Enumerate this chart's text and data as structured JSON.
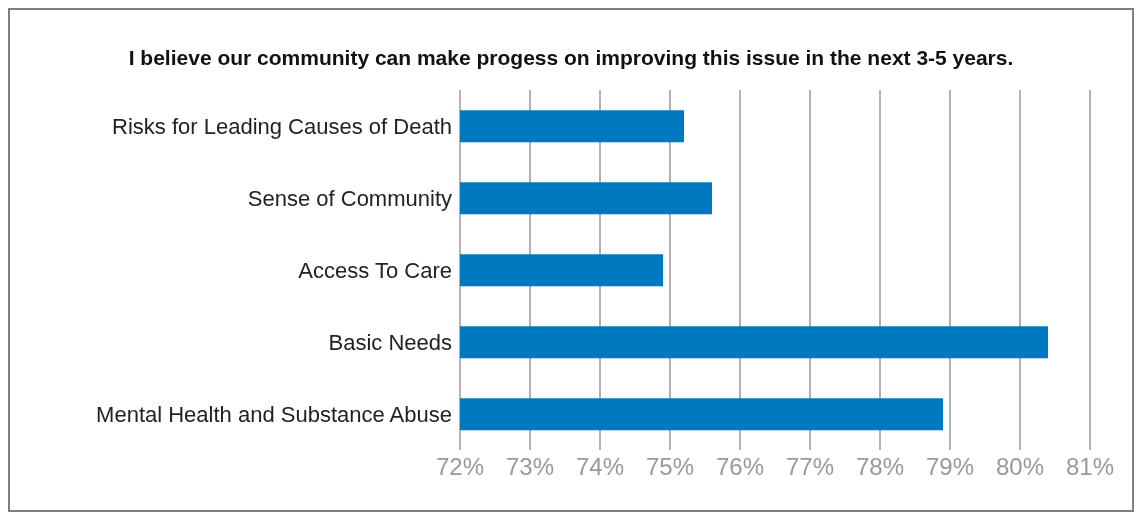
{
  "chart_data": {
    "type": "bar",
    "orientation": "horizontal",
    "title": "I believe our community can make progess on improving this issue in the next 3-5 years.",
    "categories": [
      "Risks for Leading Causes of Death",
      "Sense of Community",
      "Access To Care",
      "Basic Needs",
      "Mental Health and Substance Abuse"
    ],
    "values": [
      75.2,
      75.6,
      74.9,
      80.4,
      78.9
    ],
    "color": "#0079c1",
    "xlim": [
      72,
      81
    ],
    "xticks": [
      {
        "value": 72,
        "label": "72%"
      },
      {
        "value": 73,
        "label": "73%"
      },
      {
        "value": 74,
        "label": "74%"
      },
      {
        "value": 75,
        "label": "75%"
      },
      {
        "value": 76,
        "label": "76%"
      },
      {
        "value": 77,
        "label": "77%"
      },
      {
        "value": 78,
        "label": "78%"
      },
      {
        "value": 79,
        "label": "79%"
      },
      {
        "value": 80,
        "label": "80%"
      },
      {
        "value": 81,
        "label": "81%"
      }
    ],
    "grid": "x"
  }
}
